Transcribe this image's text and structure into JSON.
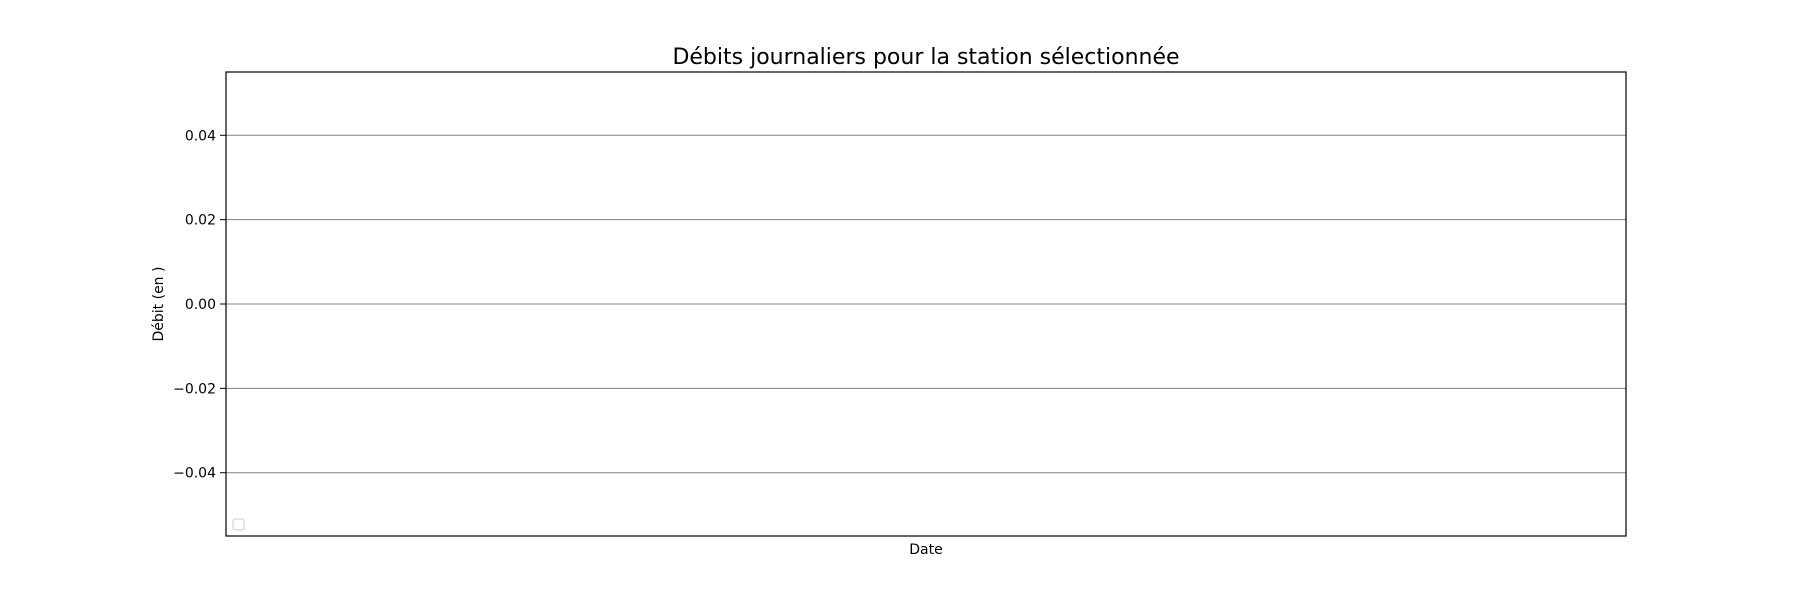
{
  "chart_data": {
    "type": "line",
    "title": "Débits journaliers pour la station sélectionnée",
    "xlabel": "Date",
    "ylabel": "Débit (en )",
    "x": [],
    "series": [],
    "ylim": [
      -0.055,
      0.055
    ],
    "yticks": [
      0.04,
      0.02,
      0.0,
      -0.02,
      -0.04
    ],
    "ytick_labels": [
      "0.04",
      "0.02",
      "0.00",
      "−0.02",
      "−0.04"
    ],
    "grid": "horizontal",
    "legend_placement": "lower-left",
    "legend_entries": [],
    "colors": {
      "background": "#ffffff",
      "frame": "#000000",
      "grid": "#808080",
      "legend_border": "#cccccc"
    }
  }
}
